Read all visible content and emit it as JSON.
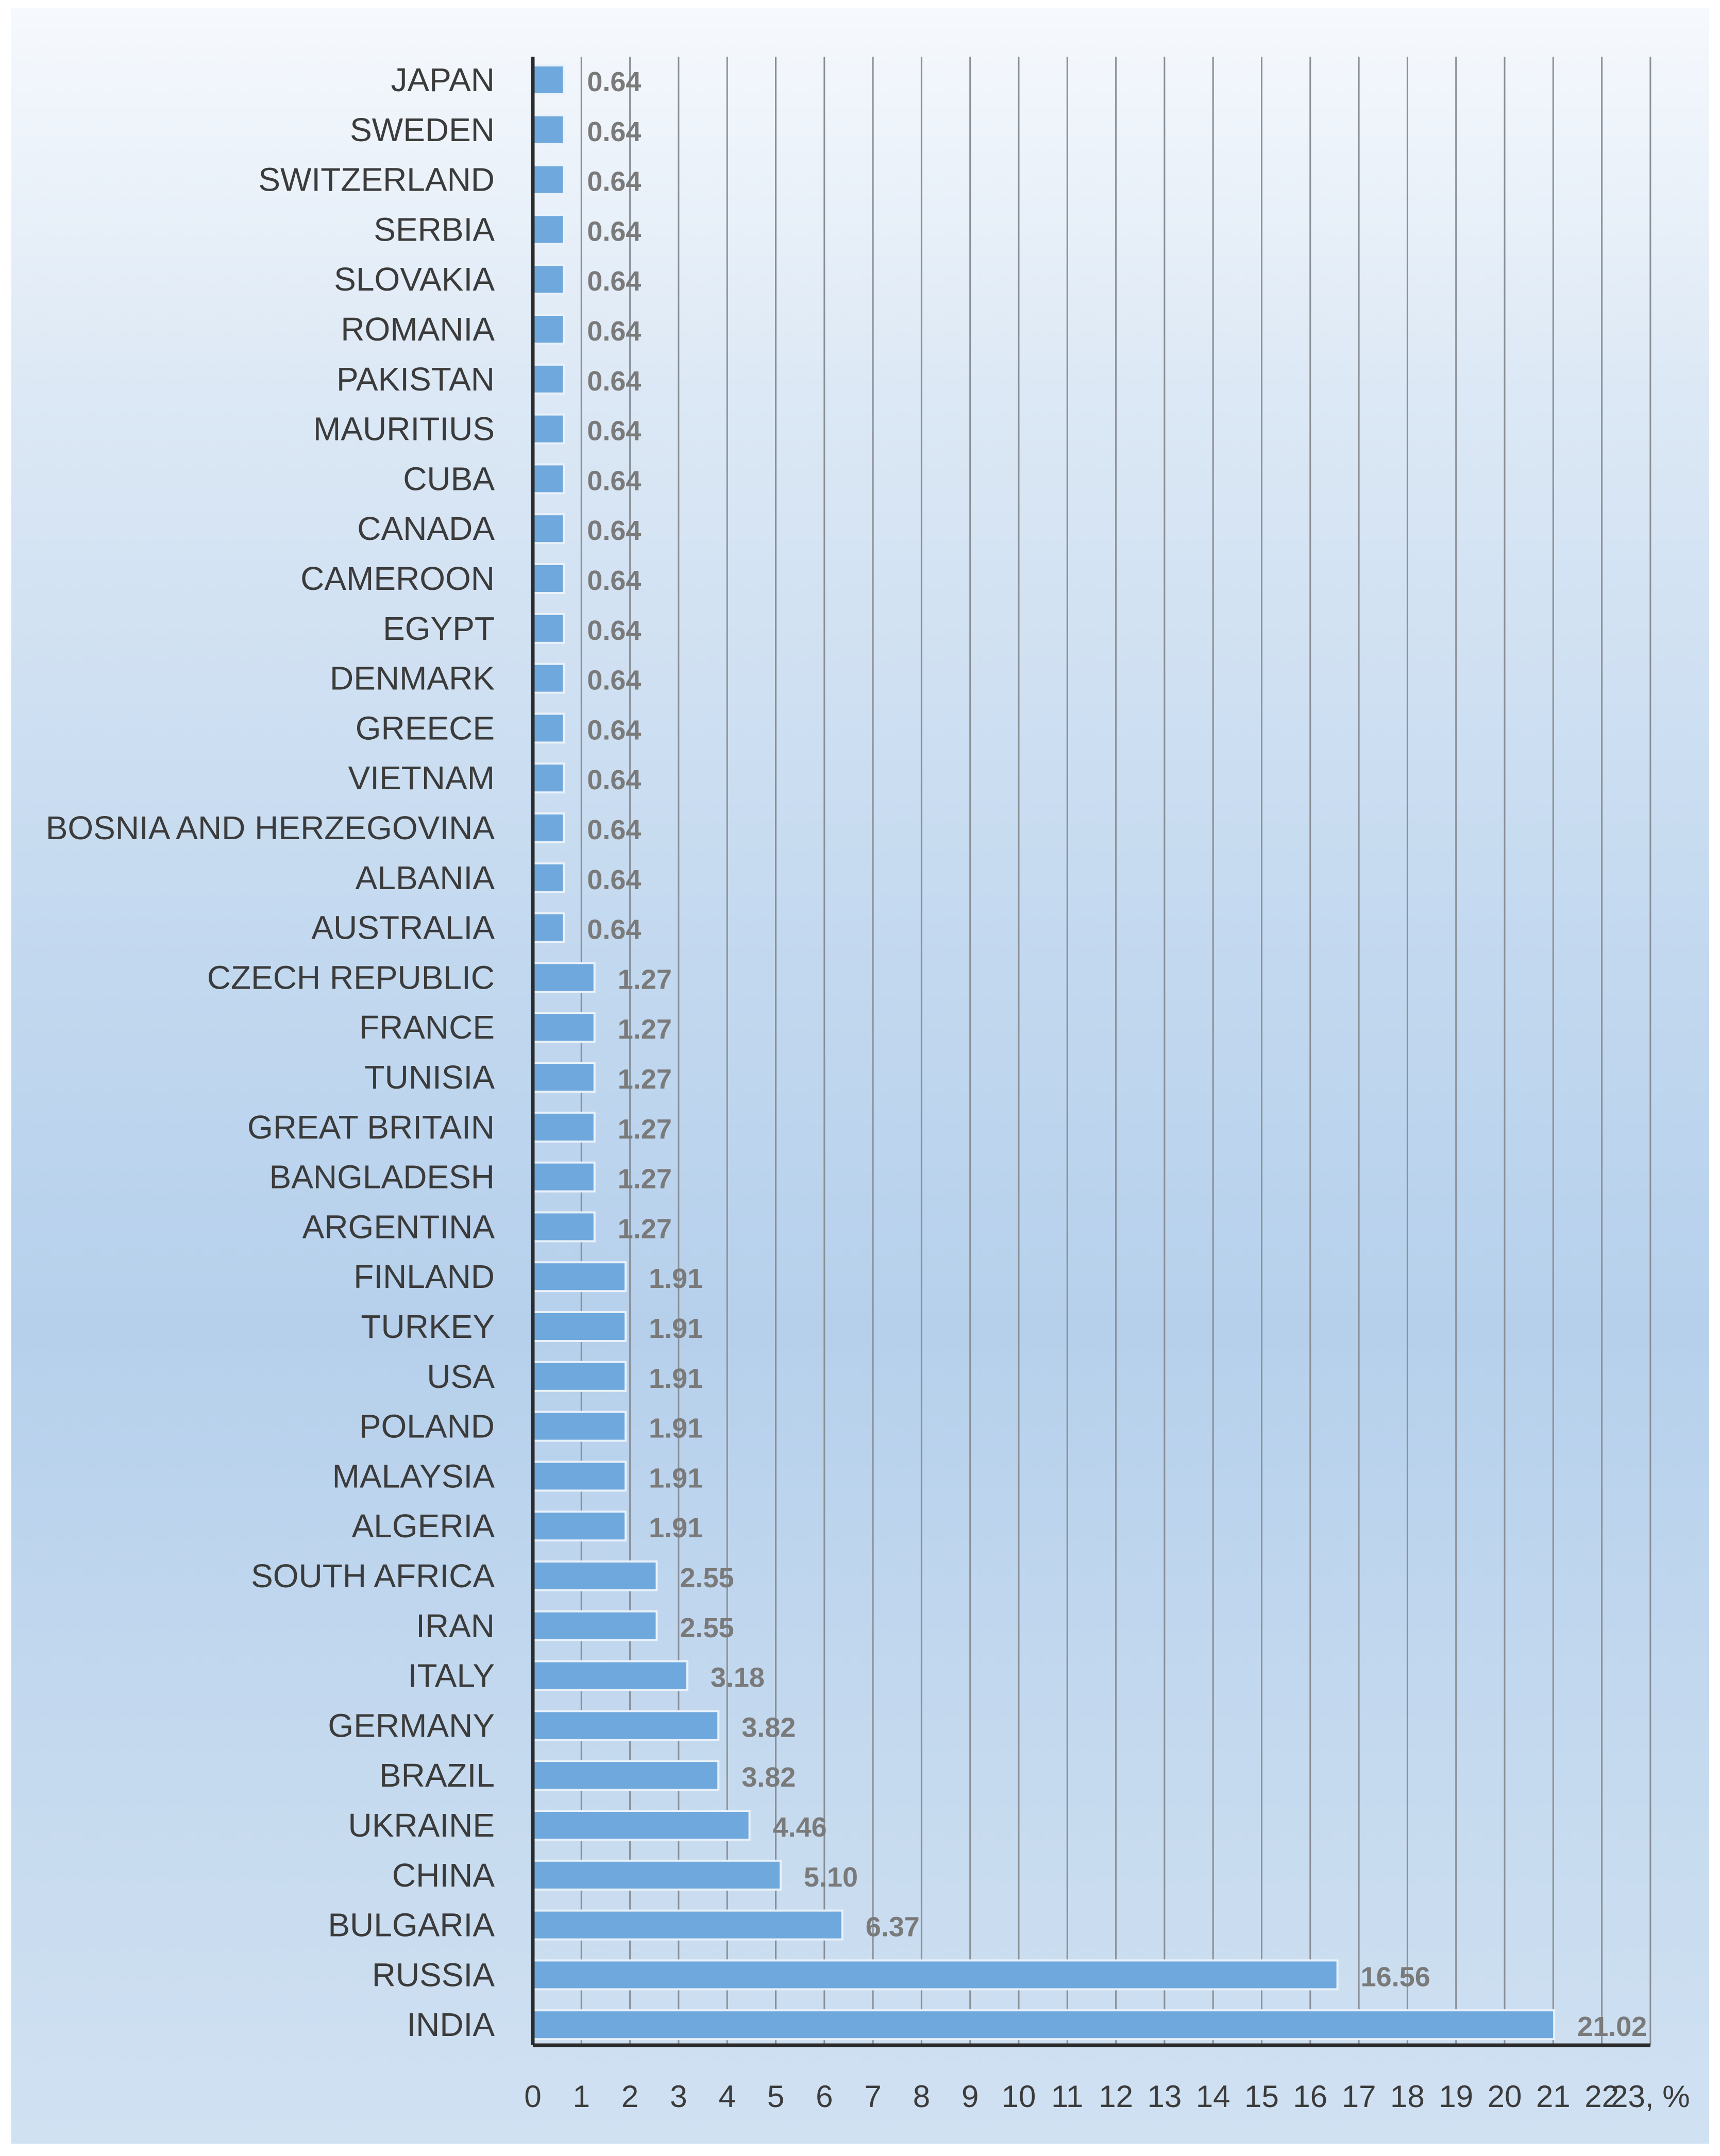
{
  "chart_data": {
    "type": "bar",
    "orientation": "horizontal",
    "title": "",
    "xlabel": "%",
    "ylabel": "",
    "xlim": [
      0,
      23
    ],
    "x_ticks": [
      0,
      1,
      2,
      3,
      4,
      5,
      6,
      7,
      8,
      9,
      10,
      11,
      12,
      13,
      14,
      15,
      16,
      17,
      18,
      19,
      20,
      21,
      22,
      23
    ],
    "x_tick_suffix": ", %",
    "grid": true,
    "bar_color": "#6fa8dc",
    "categories": [
      "JAPAN",
      "SWEDEN",
      "SWITZERLAND",
      "SERBIA",
      "SLOVAKIA",
      "ROMANIA",
      "PAKISTAN",
      "MAURITIUS",
      "CUBA",
      "CANADA",
      "CAMEROON",
      "EGYPT",
      "DENMARK",
      "GREECE",
      "VIETNAM",
      "BOSNIA AND HERZEGOVINA",
      "ALBANIA",
      "AUSTRALIA",
      "CZECH REPUBLIC",
      "FRANCE",
      "TUNISIA",
      "GREAT BRITAIN",
      "BANGLADESH",
      "ARGENTINA",
      "FINLAND",
      "TURKEY",
      "USA",
      "POLAND",
      "MALAYSIA",
      "ALGERIA",
      "SOUTH AFRICA",
      "IRAN",
      "ITALY",
      "GERMANY",
      "BRAZIL",
      "UKRAINE",
      "CHINA",
      "BULGARIA",
      "RUSSIA",
      "INDIA"
    ],
    "values": [
      0.64,
      0.64,
      0.64,
      0.64,
      0.64,
      0.64,
      0.64,
      0.64,
      0.64,
      0.64,
      0.64,
      0.64,
      0.64,
      0.64,
      0.64,
      0.64,
      0.64,
      0.64,
      1.27,
      1.27,
      1.27,
      1.27,
      1.27,
      1.27,
      1.91,
      1.91,
      1.91,
      1.91,
      1.91,
      1.91,
      2.55,
      2.55,
      3.18,
      3.82,
      3.82,
      4.46,
      5.1,
      6.37,
      16.56,
      21.02
    ],
    "value_labels": [
      "0.64",
      "0.64",
      "0.64",
      "0.64",
      "0.64",
      "0.64",
      "0.64",
      "0.64",
      "0.64",
      "0.64",
      "0.64",
      "0.64",
      "0.64",
      "0.64",
      "0.64",
      "0.64",
      "0.64",
      "0.64",
      "1.27",
      "1.27",
      "1.27",
      "1.27",
      "1.27",
      "1.27",
      "1.91",
      "1.91",
      "1.91",
      "1.91",
      "1.91",
      "1.91",
      "2.55",
      "2.55",
      "3.18",
      "3.82",
      "3.82",
      "4.46",
      "5.10",
      "6.37",
      "16.56",
      "21.02"
    ]
  }
}
